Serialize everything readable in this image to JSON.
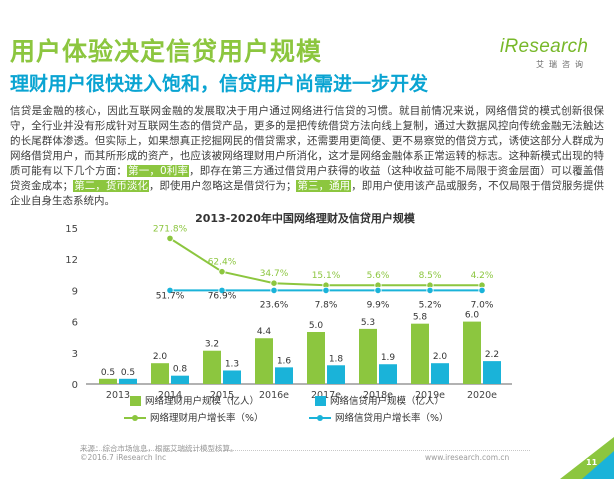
{
  "header": {
    "title": "用户体验决定信贷用户规模",
    "subtitle": "理财用户很快进入饱和，信贷用户尚需进一步开发"
  },
  "logo": {
    "brand": "iResearch",
    "brand_cn": "艾瑞咨询",
    "color": "#78b82a"
  },
  "body": {
    "text_1": "信贷是金融的核心，因此互联网金融的发展取决于用户通过网络进行信贷的习惯。就目前情况来说，网络借贷的模式创新很保守，全行业并没有形成针对互联网生态的借贷产品，更多的是把传统借贷方法向线上复制，通过大数据风控向传统金融无法触达的长尾群体渗透。但实际上，如果想真正挖掘网民的借贷需求，还需要用更简便、更不易察觉的借贷方式，诱使这部分人群成为网络借贷用户，而其所形成的资产，也应该被网络理财用户所消化，这才是网络金融体系正常运转的标志。这种新模式出现的特质可能有以下几个方面：",
    "highlight_1": "第一，0利率",
    "text_2": "，即存在第三方通过借贷用户获得的收益（这种收益可能不局限于资金层面）可以覆盖借贷资金成本；",
    "highlight_2": "第二，货币淡化",
    "text_3": "，即使用户忽略这是借贷行为；",
    "highlight_3": "第三，通用",
    "text_4": "，即用户使用该产品或服务，不仅局限于借贷服务提供企业自身生态系统内。"
  },
  "chart_data": {
    "type": "bar+line",
    "title": "2013-2020年中国网络理财及信贷用户规模",
    "categories": [
      "2013",
      "2014",
      "2015",
      "2016e",
      "2017e",
      "2018e",
      "2019e",
      "2020e"
    ],
    "ylim": [
      0,
      15
    ],
    "yticks": [
      0,
      3,
      6,
      9,
      12,
      15
    ],
    "series": [
      {
        "name": "网络理财用户规模（亿人）",
        "kind": "bar",
        "color": "#8cc63f",
        "values": [
          0.5,
          2.0,
          3.2,
          4.4,
          5.0,
          5.3,
          5.8,
          6.0
        ],
        "labels": [
          "0.5",
          "2.0",
          "3.2",
          "4.4",
          "5.0",
          "5.3",
          "5.8",
          "6.0"
        ]
      },
      {
        "name": "网络信贷用户规模（亿人）",
        "kind": "bar",
        "color": "#1ab3d9",
        "values": [
          0.5,
          0.8,
          1.3,
          1.6,
          1.8,
          1.9,
          2.0,
          2.2
        ],
        "labels": [
          "0.5",
          "0.8",
          "1.3",
          "1.6",
          "1.8",
          "1.9",
          "2.0",
          "2.2"
        ]
      },
      {
        "name": "网络理财用户增长率（%）",
        "kind": "line",
        "color": "#8cc63f",
        "values_pct": [
          null,
          271.8,
          62.4,
          34.7,
          15.1,
          5.6,
          8.5,
          4.2
        ],
        "labels": [
          "",
          "271.8%",
          "62.4%",
          "34.7%",
          "15.1%",
          "5.6%",
          "8.5%",
          "4.2%"
        ]
      },
      {
        "name": "网络信贷用户增长率（%）",
        "kind": "line",
        "color": "#1ab3d9",
        "values_pct": [
          null,
          51.7,
          76.9,
          23.6,
          7.8,
          9.9,
          5.2,
          7.0
        ],
        "labels": [
          "",
          "51.7%",
          "76.9%",
          "23.6%",
          "7.8%",
          "9.9%",
          "5.2%",
          "7.0%"
        ]
      }
    ]
  },
  "footer": {
    "source": "来源：综合市场信息，根据艾瑞统计模型核算。",
    "copyright": "©2016.7 iResearch Inc",
    "website": "www.iresearch.com.cn",
    "page": "11"
  }
}
